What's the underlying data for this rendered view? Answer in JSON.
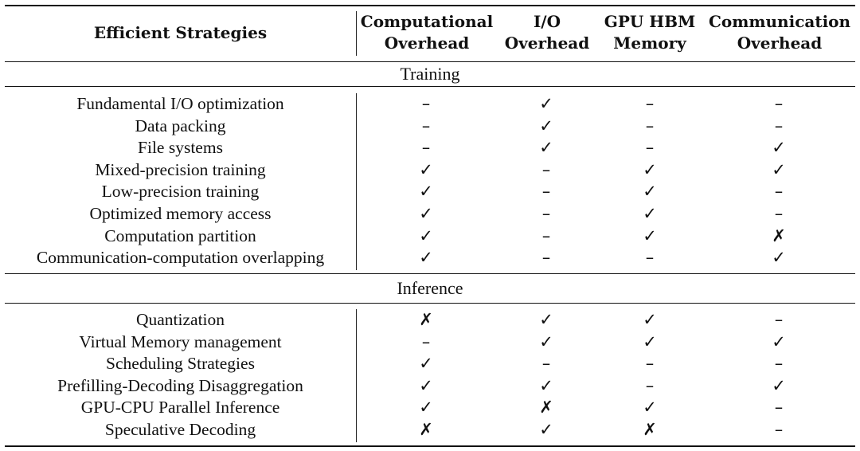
{
  "header": {
    "strategy": "Efficient Strategies",
    "columns": [
      "Computational\nOverhead",
      "I/O\nOverhead",
      "GPU HBM\nMemory",
      "Communication\nOverhead"
    ]
  },
  "legend": {
    "yes": "✓",
    "no": "✗",
    "na": "–"
  },
  "sections": [
    {
      "title": "Training",
      "rows": [
        {
          "name": "Fundamental I/O optimization",
          "marks": [
            "–",
            "✓",
            "–",
            "–"
          ]
        },
        {
          "name": "Data packing",
          "marks": [
            "–",
            "✓",
            "–",
            "–"
          ]
        },
        {
          "name": "File systems",
          "marks": [
            "–",
            "✓",
            "–",
            "✓"
          ]
        },
        {
          "name": "Mixed-precision training",
          "marks": [
            "✓",
            "–",
            "✓",
            "✓"
          ]
        },
        {
          "name": "Low-precision training",
          "marks": [
            "✓",
            "–",
            "✓",
            "–"
          ]
        },
        {
          "name": "Optimized memory access",
          "marks": [
            "✓",
            "–",
            "✓",
            "–"
          ]
        },
        {
          "name": "Computation partition",
          "marks": [
            "✓",
            "–",
            "✓",
            "✗"
          ]
        },
        {
          "name": "Communication-computation overlapping",
          "marks": [
            "✓",
            "–",
            "–",
            "✓"
          ]
        }
      ]
    },
    {
      "title": "Inference",
      "rows": [
        {
          "name": "Quantization",
          "marks": [
            "✗",
            "✓",
            "✓",
            "–"
          ]
        },
        {
          "name": "Virtual Memory management",
          "marks": [
            "–",
            "✓",
            "✓",
            "✓"
          ]
        },
        {
          "name": "Scheduling Strategies",
          "marks": [
            "✓",
            "–",
            "–",
            "–"
          ]
        },
        {
          "name": "Prefilling-Decoding Disaggregation",
          "marks": [
            "✓",
            "✓",
            "–",
            "✓"
          ]
        },
        {
          "name": "GPU-CPU Parallel Inference",
          "marks": [
            "✓",
            "✗",
            "✓",
            "–"
          ]
        },
        {
          "name": "Speculative Decoding",
          "marks": [
            "✗",
            "✓",
            "✗",
            "–"
          ]
        }
      ]
    }
  ]
}
